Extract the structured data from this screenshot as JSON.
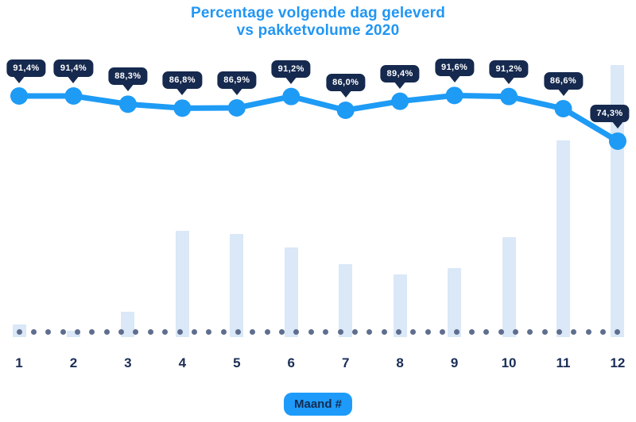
{
  "header": {
    "title_line1": "Percentage volgende dag geleverd",
    "title_line2": "vs pakketvolume 2020"
  },
  "x_axis": {
    "label": "Maand #",
    "tick_labels": [
      "1",
      "2",
      "3",
      "4",
      "5",
      "6",
      "7",
      "8",
      "9",
      "10",
      "11",
      "12"
    ]
  },
  "months": [
    {
      "month": "1",
      "pct_label": "91,4%",
      "pct": 91.4,
      "volume_rel": 4.7
    },
    {
      "month": "2",
      "pct_label": "91,4%",
      "pct": 91.4,
      "volume_rel": 2.3
    },
    {
      "month": "3",
      "pct_label": "88,3%",
      "pct": 88.3,
      "volume_rel": 9.3
    },
    {
      "month": "4",
      "pct_label": "86,8%",
      "pct": 86.8,
      "volume_rel": 39.1
    },
    {
      "month": "5",
      "pct_label": "86,9%",
      "pct": 86.9,
      "volume_rel": 37.9
    },
    {
      "month": "6",
      "pct_label": "91,2%",
      "pct": 91.2,
      "volume_rel": 32.9
    },
    {
      "month": "7",
      "pct_label": "86,0%",
      "pct": 86.0,
      "volume_rel": 26.8
    },
    {
      "month": "8",
      "pct_label": "89,4%",
      "pct": 89.4,
      "volume_rel": 23.0
    },
    {
      "month": "9",
      "pct_label": "91,6%",
      "pct": 91.6,
      "volume_rel": 25.4
    },
    {
      "month": "10",
      "pct_label": "91,2%",
      "pct": 91.2,
      "volume_rel": 36.7
    },
    {
      "month": "11",
      "pct_label": "86,6%",
      "pct": 86.6,
      "volume_rel": 72.3
    },
    {
      "month": "12",
      "pct_label": "74,3%",
      "pct": 74.3,
      "volume_rel": 100
    }
  ],
  "colors": {
    "title": "#2196F3",
    "line": "#1E9BF5",
    "point": "#1E9BF5",
    "tooltip_bg": "#16294E",
    "tooltip_text": "#FFFFFF",
    "bar_fill": "#DAE8F7",
    "baseline_dot": "#5F6E8E",
    "axis_text": "#1B2E57",
    "badge_bg": "#1E9BFA",
    "badge_text": "#132B50"
  },
  "chart_data": {
    "type": "combo",
    "title": "Percentage volgende dag geleverd vs pakketvolume 2020",
    "x": [
      1,
      2,
      3,
      4,
      5,
      6,
      7,
      8,
      9,
      10,
      11,
      12
    ],
    "xlabel": "Maand #",
    "ylabel": "",
    "grid": false,
    "legend": "none",
    "series": [
      {
        "name": "Percentage volgende dag geleverd",
        "type": "line",
        "unit": "%",
        "values": [
          91.4,
          91.4,
          88.3,
          86.8,
          86.9,
          91.2,
          86.0,
          89.4,
          91.6,
          91.2,
          86.6,
          74.3
        ],
        "data_labels": [
          "91,4%",
          "91,4%",
          "88,3%",
          "86,8%",
          "86,9%",
          "91,2%",
          "86,0%",
          "89,4%",
          "91,6%",
          "91,2%",
          "86,6%",
          "74,3%"
        ]
      },
      {
        "name": "Pakketvolume",
        "type": "bar",
        "values_relative": [
          4.7,
          2.3,
          9.3,
          39.1,
          37.9,
          32.9,
          26.8,
          23.0,
          25.4,
          36.7,
          72.3,
          100
        ],
        "note": "No volume axis shown in the image; values are bar heights relative to December (= 100)."
      }
    ]
  }
}
